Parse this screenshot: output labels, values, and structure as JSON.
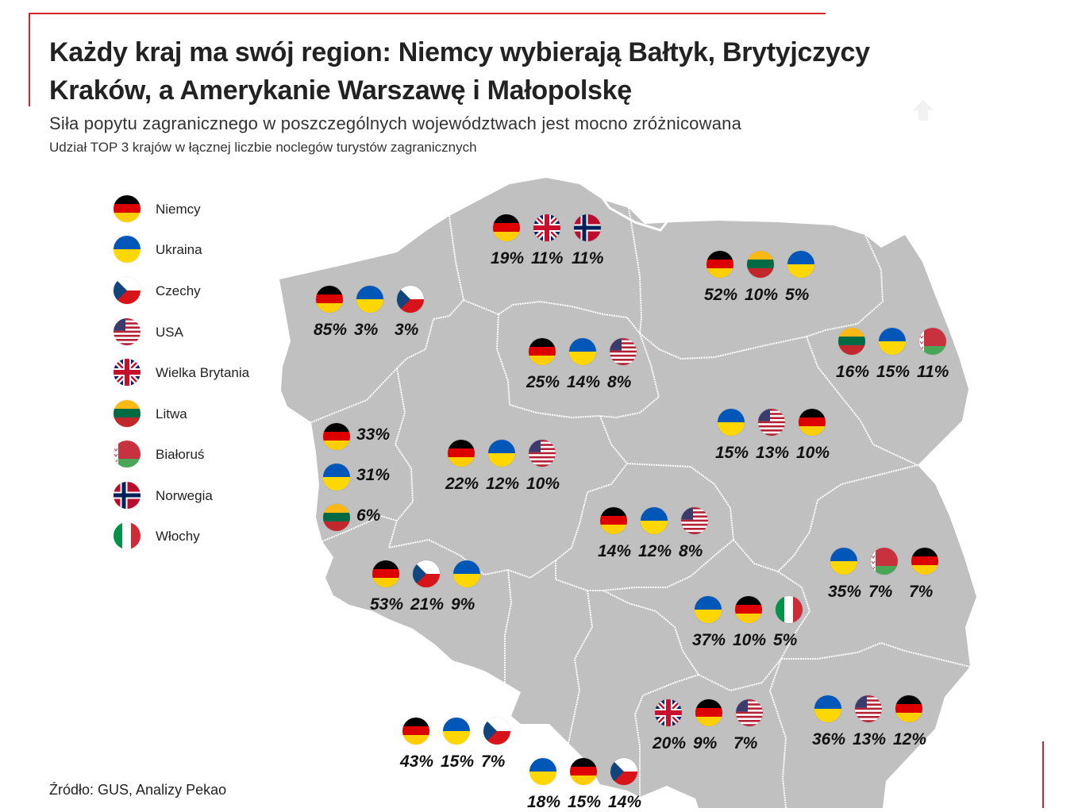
{
  "header": {
    "title": "Każdy kraj ma swój region: Niemcy wybierają Bałtyk, Brytyjczycy Kraków, a Amerykanie Warszawę i Małopolskę",
    "subtitle": "Siła popytu zagranicznego w poszczególnych  województwach jest mocno zróżnicowana",
    "caption": "Udział TOP 3 krajów w łącznej liczbie noclegów turystów zagranicznych"
  },
  "footer": {
    "source": "Źródło: GUS, Analizy Pekao"
  },
  "colors": {
    "accent": "#d4232b",
    "map_fill": "#c0c0c0",
    "border": "#ffffff"
  },
  "legend": [
    {
      "flag": "de",
      "label": "Niemcy"
    },
    {
      "flag": "ua",
      "label": "Ukraina"
    },
    {
      "flag": "cz",
      "label": "Czechy"
    },
    {
      "flag": "us",
      "label": "USA"
    },
    {
      "flag": "gb",
      "label": "Wielka Brytania"
    },
    {
      "flag": "lt",
      "label": "Litwa"
    },
    {
      "flag": "by",
      "label": "Białoruś"
    },
    {
      "flag": "no",
      "label": "Norwegia"
    },
    {
      "flag": "it",
      "label": "Włochy"
    }
  ],
  "regions": [
    {
      "entries": [
        {
          "flag": "de",
          "pct": "85%"
        },
        {
          "flag": "ua",
          "pct": "3%"
        },
        {
          "flag": "cz",
          "pct": "3%"
        }
      ]
    },
    {
      "entries": [
        {
          "flag": "de",
          "pct": "19%"
        },
        {
          "flag": "gb",
          "pct": "11%"
        },
        {
          "flag": "no",
          "pct": "11%"
        }
      ]
    },
    {
      "entries": [
        {
          "flag": "de",
          "pct": "52%"
        },
        {
          "flag": "lt",
          "pct": "10%"
        },
        {
          "flag": "ua",
          "pct": "5%"
        }
      ]
    },
    {
      "entries": [
        {
          "flag": "lt",
          "pct": "16%"
        },
        {
          "flag": "ua",
          "pct": "15%"
        },
        {
          "flag": "by",
          "pct": "11%"
        }
      ]
    },
    {
      "entries": [
        {
          "flag": "de",
          "pct": "25%"
        },
        {
          "flag": "ua",
          "pct": "14%"
        },
        {
          "flag": "us",
          "pct": "8%"
        }
      ]
    },
    {
      "entries": [
        {
          "flag": "ua",
          "pct": "15%"
        },
        {
          "flag": "us",
          "pct": "13%"
        },
        {
          "flag": "de",
          "pct": "10%"
        }
      ]
    },
    {
      "entries": [
        {
          "flag": "de",
          "pct": "33%"
        },
        {
          "flag": "ua",
          "pct": "31%"
        },
        {
          "flag": "lt",
          "pct": "6%"
        }
      ]
    },
    {
      "entries": [
        {
          "flag": "de",
          "pct": "22%"
        },
        {
          "flag": "ua",
          "pct": "12%"
        },
        {
          "flag": "us",
          "pct": "10%"
        }
      ]
    },
    {
      "entries": [
        {
          "flag": "de",
          "pct": "14%"
        },
        {
          "flag": "ua",
          "pct": "12%"
        },
        {
          "flag": "us",
          "pct": "8%"
        }
      ]
    },
    {
      "entries": [
        {
          "flag": "ua",
          "pct": "35%"
        },
        {
          "flag": "by",
          "pct": "7%"
        },
        {
          "flag": "de",
          "pct": "7%"
        }
      ]
    },
    {
      "entries": [
        {
          "flag": "de",
          "pct": "53%"
        },
        {
          "flag": "cz",
          "pct": "21%"
        },
        {
          "flag": "ua",
          "pct": "9%"
        }
      ]
    },
    {
      "entries": [
        {
          "flag": "ua",
          "pct": "37%"
        },
        {
          "flag": "de",
          "pct": "10%"
        },
        {
          "flag": "it",
          "pct": "5%"
        }
      ]
    },
    {
      "entries": [
        {
          "flag": "de",
          "pct": "43%"
        },
        {
          "flag": "ua",
          "pct": "15%"
        },
        {
          "flag": "cz",
          "pct": "7%"
        }
      ]
    },
    {
      "entries": [
        {
          "flag": "ua",
          "pct": "18%"
        },
        {
          "flag": "de",
          "pct": "15%"
        },
        {
          "flag": "cz",
          "pct": "14%"
        }
      ]
    },
    {
      "entries": [
        {
          "flag": "gb",
          "pct": "20%"
        },
        {
          "flag": "de",
          "pct": "9%"
        },
        {
          "flag": "us",
          "pct": "7%"
        }
      ]
    },
    {
      "entries": [
        {
          "flag": "ua",
          "pct": "36%"
        },
        {
          "flag": "us",
          "pct": "13%"
        },
        {
          "flag": "de",
          "pct": "12%"
        }
      ]
    }
  ]
}
